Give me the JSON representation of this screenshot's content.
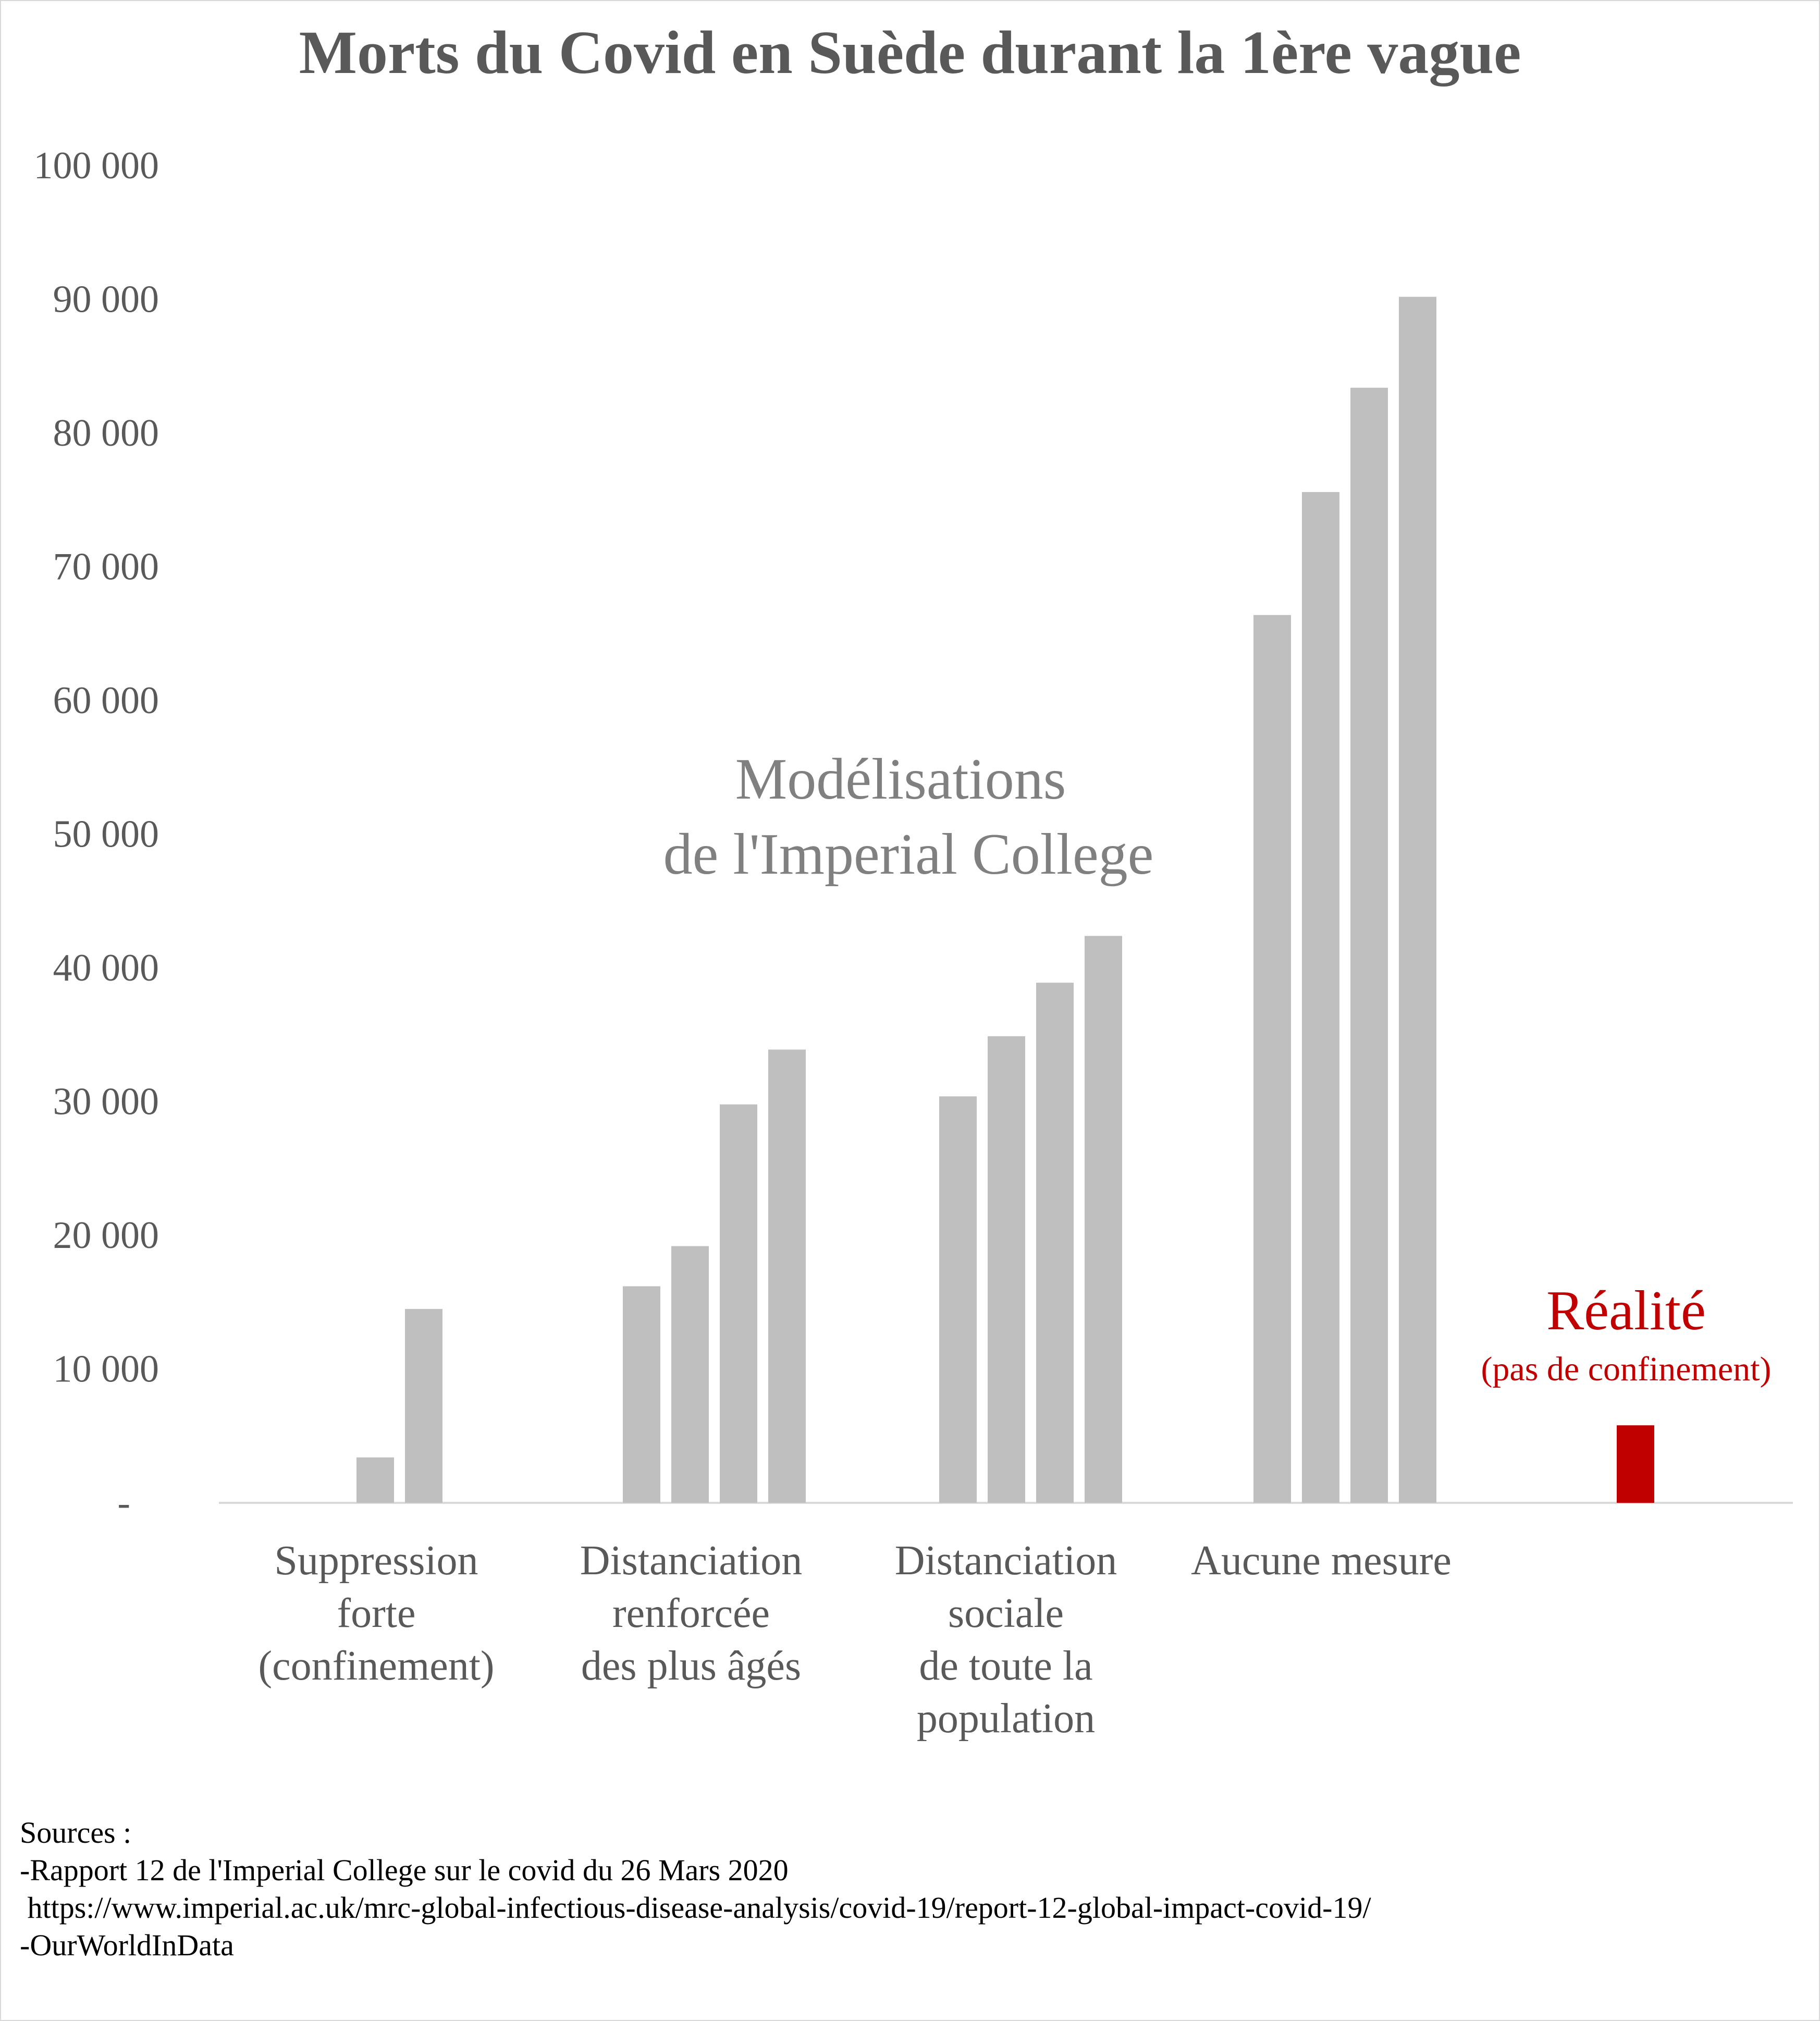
{
  "chart_data": {
    "type": "bar",
    "title": "Morts du Covid en Suède durant la 1ère vague",
    "xlabel": "",
    "ylabel": "",
    "ylim": [
      0,
      100000
    ],
    "yticks": [
      "-",
      "10 000",
      "20 000",
      "30 000",
      "40 000",
      "50 000",
      "60 000",
      "70 000",
      "80 000",
      "90 000",
      "100 000"
    ],
    "grid": false,
    "colors": {
      "model": "#bfbfbf",
      "reality": "#c00000",
      "text": "#595959",
      "annotation": "#808080",
      "axis": "#d9d9d9"
    },
    "groups": [
      {
        "label": [
          "Suppression",
          "forte",
          "(confinement)"
        ],
        "values": [
          null,
          null,
          3400,
          14500
        ]
      },
      {
        "label": [
          "Distanciation",
          "renforcée",
          "des plus âgés"
        ],
        "values": [
          16200,
          19200,
          29800,
          33900
        ]
      },
      {
        "label": [
          "Distanciation",
          "sociale",
          "de toute la",
          "population"
        ],
        "values": [
          30400,
          34900,
          38900,
          42400
        ]
      },
      {
        "label": [
          "Aucune mesure"
        ],
        "values": [
          66400,
          75600,
          83400,
          90200
        ]
      },
      {
        "label": [],
        "values": [
          5800
        ],
        "highlight": true
      }
    ],
    "annotations": {
      "model_line1": "Modélisations",
      "model_line2": "de l'Imperial College",
      "reality_title": "Réalité",
      "reality_subtitle": "(pas de confinement)"
    }
  },
  "sources": {
    "heading": "Sources :",
    "line1": "-Rapport 12 de l'Imperial College sur le covid du 26 Mars 2020",
    "line2": " https://www.imperial.ac.uk/mrc-global-infectious-disease-analysis/covid-19/report-12-global-impact-covid-19/",
    "line3": "-OurWorldInData"
  }
}
